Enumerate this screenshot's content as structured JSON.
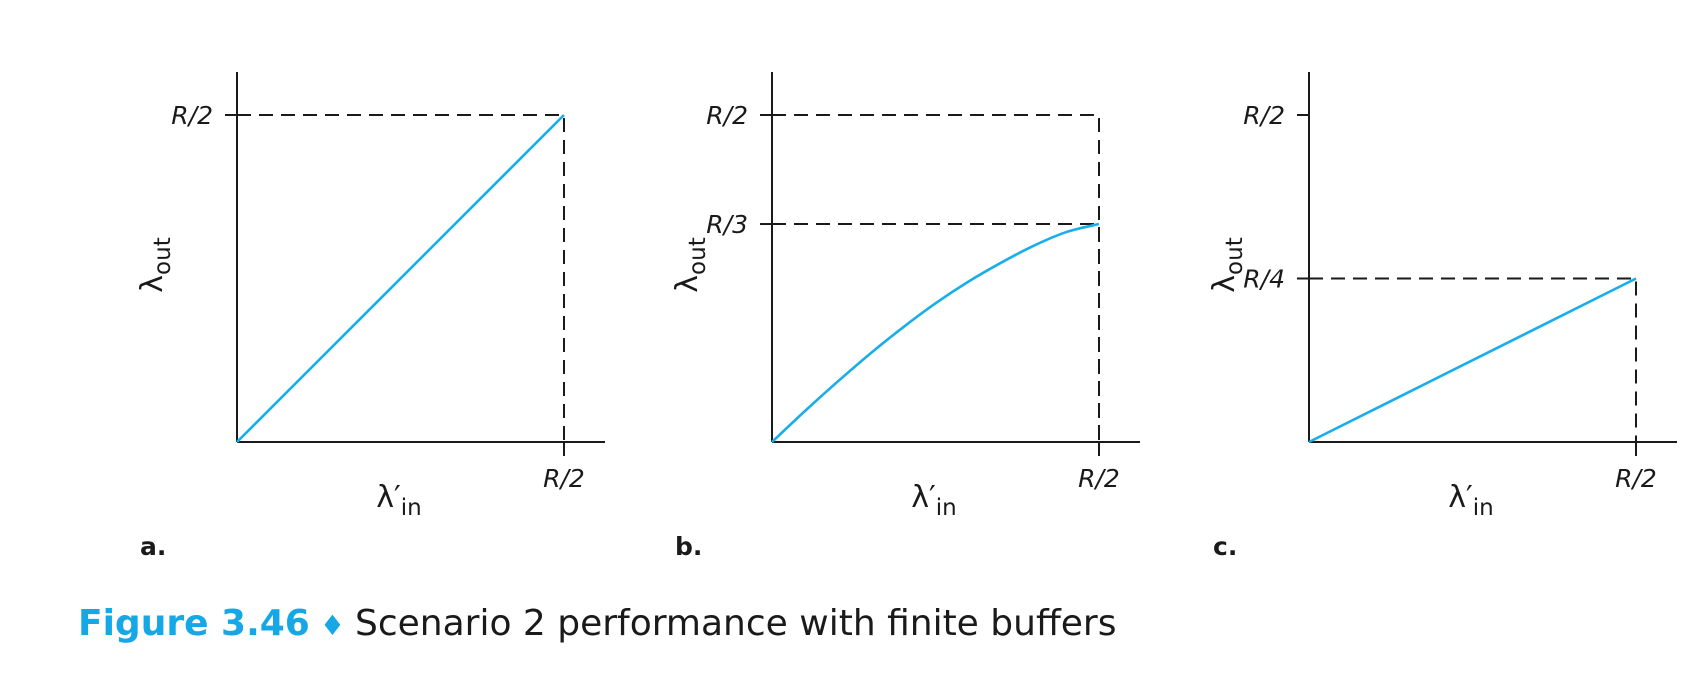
{
  "caption": {
    "figure_number": "Figure 3.46",
    "separator": "♦",
    "title": "Scenario 2 performance with finite buffers"
  },
  "colors": {
    "curve": "#1aaee8",
    "caption_accent": "#16a8e6",
    "axis": "#1a1a1a"
  },
  "chart_data": [
    {
      "type": "line",
      "panel_label": "a.",
      "ylabel": "λout",
      "xlabel": "λ′in",
      "x_ticks": [
        {
          "value": 0.5,
          "label": "R/2"
        }
      ],
      "y_ticks": [
        {
          "value": 0.5,
          "label": "R/2"
        }
      ],
      "guides": [
        {
          "x": 0.5,
          "y": 0.5
        }
      ],
      "series": [
        {
          "x": [
            0,
            0.5
          ],
          "y": [
            0,
            0.5
          ]
        }
      ],
      "xlim": [
        0,
        0.5
      ],
      "ylim": [
        0,
        0.5
      ]
    },
    {
      "type": "line",
      "panel_label": "b.",
      "ylabel": "λout",
      "xlabel": "λ′in",
      "x_ticks": [
        {
          "value": 0.5,
          "label": "R/2"
        }
      ],
      "y_ticks": [
        {
          "value": 0.5,
          "label": "R/2"
        },
        {
          "value": 0.3333,
          "label": "R/3"
        }
      ],
      "guides": [
        {
          "x": 0.5,
          "y": 0.5
        },
        {
          "x": 0.5,
          "y": 0.3333
        }
      ],
      "series": [
        {
          "x": [
            0,
            0.05,
            0.1,
            0.15,
            0.2,
            0.25,
            0.3,
            0.35,
            0.4,
            0.45,
            0.5
          ],
          "y": [
            0,
            0.047,
            0.092,
            0.135,
            0.175,
            0.212,
            0.245,
            0.274,
            0.3,
            0.321,
            0.3333
          ]
        }
      ],
      "xlim": [
        0,
        0.5
      ],
      "ylim": [
        0,
        0.5
      ]
    },
    {
      "type": "line",
      "panel_label": "c.",
      "ylabel": "λout",
      "xlabel": "λ′in",
      "x_ticks": [
        {
          "value": 0.5,
          "label": "R/2"
        }
      ],
      "y_ticks": [
        {
          "value": 0.5,
          "label": "R/2"
        },
        {
          "value": 0.25,
          "label": "R/4"
        }
      ],
      "guides": [
        {
          "x": 0.5,
          "y": 0.25
        }
      ],
      "series": [
        {
          "x": [
            0,
            0.5
          ],
          "y": [
            0,
            0.25
          ]
        }
      ],
      "xlim": [
        0,
        0.5
      ],
      "ylim": [
        0,
        0.5
      ]
    }
  ]
}
